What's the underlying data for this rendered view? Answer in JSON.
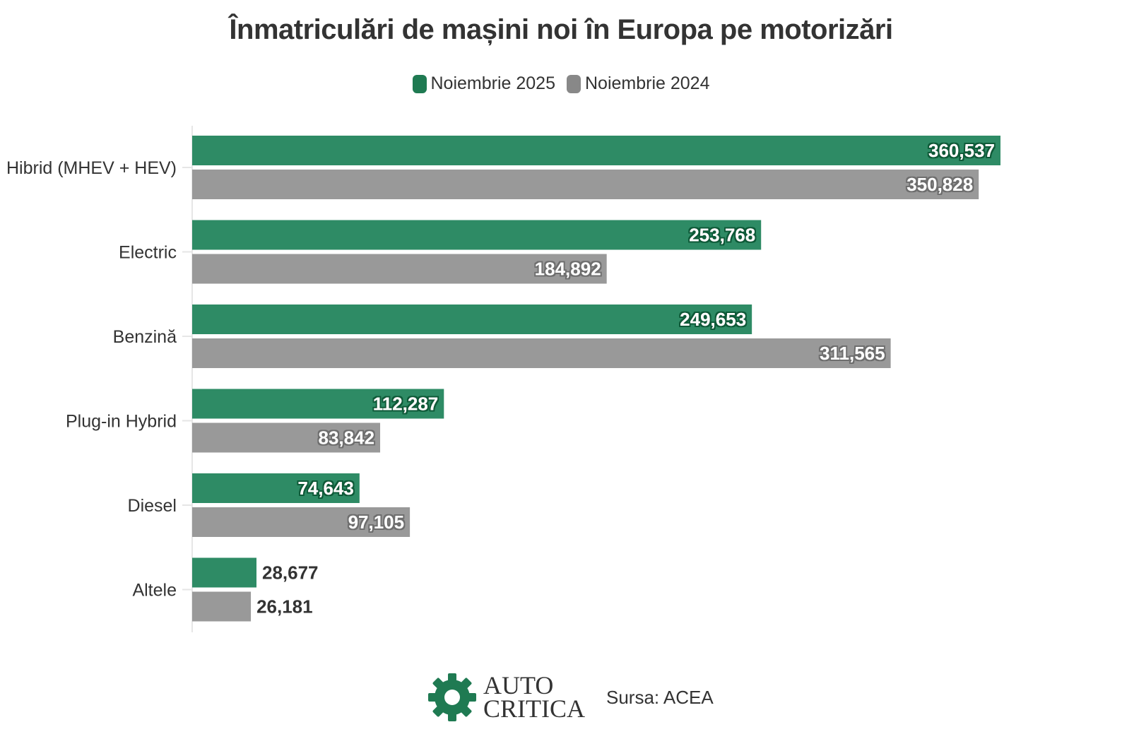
{
  "chart_data": {
    "type": "bar",
    "orientation": "horizontal",
    "title": "Înmatriculări de mașini noi în Europa pe motorizări",
    "categories": [
      "Hibrid (MHEV + HEV)",
      "Electric",
      "Benzină",
      "Plug-in Hybrid",
      "Diesel",
      "Altele"
    ],
    "series": [
      {
        "name": "Noiembrie 2025",
        "color": "#2e8b65",
        "values": [
          360537,
          253768,
          249653,
          112287,
          74643,
          28677
        ],
        "labels": [
          "360,537",
          "253,768",
          "249,653",
          "112,287",
          "74,643",
          "28,677"
        ]
      },
      {
        "name": "Noiembrie 2024",
        "color": "#999999",
        "values": [
          350828,
          184892,
          311565,
          83842,
          97105,
          26181
        ],
        "labels": [
          "350,828",
          "184,892",
          "311,565",
          "83,842",
          "97,105",
          "26,181"
        ]
      }
    ],
    "xlim": [
      0,
      360537
    ],
    "legend_position": "top-center",
    "grid": false
  },
  "legend": {
    "series_1": "Noiembrie 2025",
    "series_2": "Noiembrie 2024",
    "color_1": "#1f7a52",
    "color_2": "#888888"
  },
  "footer": {
    "logo_line_1": "AUTO",
    "logo_line_2": "CRITICA",
    "logo_color": "#1f7a52",
    "source": "Sursa: ACEA"
  }
}
